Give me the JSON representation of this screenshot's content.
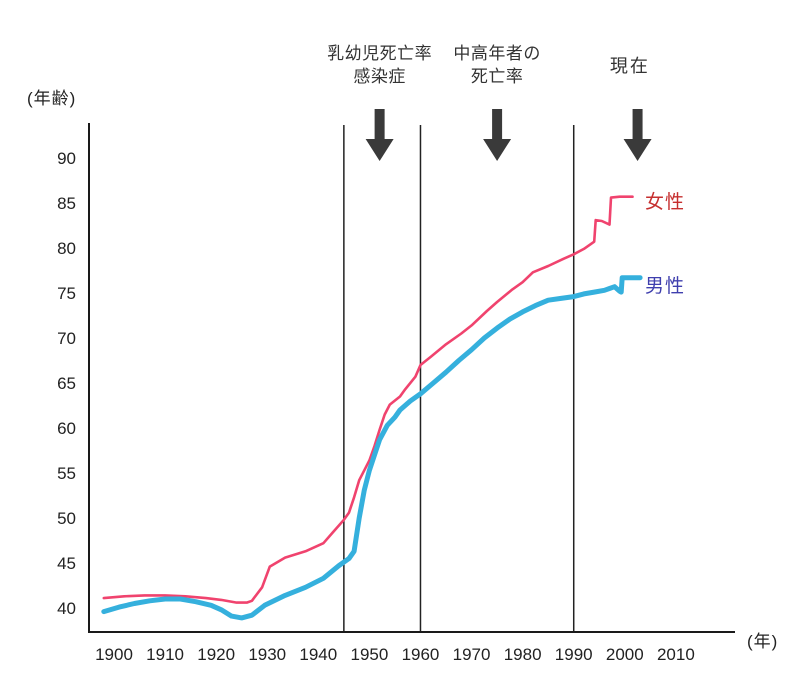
{
  "chart_data": {
    "type": "line",
    "title": "",
    "xlabel": "(年)",
    "ylabel": "(年齢)",
    "x_ticks": [
      1900,
      1910,
      1920,
      1930,
      1940,
      1950,
      1960,
      1970,
      1980,
      1990,
      2000,
      2010
    ],
    "y_ticks": [
      40,
      45,
      50,
      55,
      60,
      65,
      70,
      75,
      80,
      85,
      90
    ],
    "xlim": [
      1898,
      2022
    ],
    "ylim": [
      37.3,
      94
    ],
    "grid": false,
    "event_line_years": [
      1945,
      1960,
      1990
    ],
    "arrow_years": [
      1952,
      1975,
      2002.5
    ],
    "annotations": [
      {
        "lines": [
          "乳幼児死亡率",
          "感染症"
        ],
        "year": 1952
      },
      {
        "lines": [
          "中高年者の",
          "死亡率"
        ],
        "year": 1975
      },
      {
        "lines": [
          "現在"
        ],
        "year": 2001
      }
    ],
    "axis_color": "#1a1a1a",
    "event_line_color": "#222222",
    "arrow_color": "#3a3a3a",
    "series": [
      {
        "name": "女性",
        "color": "#f0436e",
        "label_color": "#c62f2f",
        "stroke_width": 2.6,
        "points": [
          [
            1898,
            41.1
          ],
          [
            1902,
            41.3
          ],
          [
            1906,
            41.4
          ],
          [
            1910,
            41.4
          ],
          [
            1914,
            41.3
          ],
          [
            1918,
            41.1
          ],
          [
            1921,
            40.9
          ],
          [
            1924,
            40.6
          ],
          [
            1926,
            40.6
          ],
          [
            1927,
            40.8
          ],
          [
            1929,
            42.3
          ],
          [
            1930.5,
            44.6
          ],
          [
            1933.5,
            45.6
          ],
          [
            1937.5,
            46.3
          ],
          [
            1941,
            47.2
          ],
          [
            1943,
            48.5
          ],
          [
            1945,
            49.8
          ],
          [
            1946,
            50.6
          ],
          [
            1947,
            52.3
          ],
          [
            1948,
            54.2
          ],
          [
            1949,
            55.3
          ],
          [
            1950,
            56.4
          ],
          [
            1951,
            58.0
          ],
          [
            1952,
            59.8
          ],
          [
            1953,
            61.5
          ],
          [
            1954,
            62.6
          ],
          [
            1956,
            63.5
          ],
          [
            1957,
            64.3
          ],
          [
            1959,
            65.7
          ],
          [
            1960,
            67.0
          ],
          [
            1962,
            67.9
          ],
          [
            1965,
            69.3
          ],
          [
            1968,
            70.5
          ],
          [
            1970,
            71.4
          ],
          [
            1973,
            73.0
          ],
          [
            1975,
            74.0
          ],
          [
            1978,
            75.4
          ],
          [
            1980,
            76.2
          ],
          [
            1982,
            77.3
          ],
          [
            1985,
            78.0
          ],
          [
            1988,
            78.8
          ],
          [
            1990,
            79.3
          ],
          [
            1992,
            79.9
          ],
          [
            1994,
            80.7
          ],
          [
            1994.3,
            83.1
          ],
          [
            1995.5,
            83.0
          ],
          [
            1997,
            82.6
          ],
          [
            1997.3,
            85.6
          ],
          [
            1999,
            85.7
          ],
          [
            2001.5,
            85.7
          ]
        ]
      },
      {
        "name": "男性",
        "color": "#35b0dd",
        "label_color": "#3f3fae",
        "stroke_width": 5,
        "points": [
          [
            1898,
            39.6
          ],
          [
            1901,
            40.1
          ],
          [
            1904,
            40.5
          ],
          [
            1907,
            40.8
          ],
          [
            1910,
            41.0
          ],
          [
            1913,
            41.0
          ],
          [
            1916,
            40.7
          ],
          [
            1919,
            40.3
          ],
          [
            1921,
            39.8
          ],
          [
            1923,
            39.1
          ],
          [
            1925,
            38.9
          ],
          [
            1927,
            39.2
          ],
          [
            1929.5,
            40.3
          ],
          [
            1933.5,
            41.4
          ],
          [
            1937.5,
            42.3
          ],
          [
            1941,
            43.3
          ],
          [
            1944,
            44.7
          ],
          [
            1946,
            45.5
          ],
          [
            1947,
            46.3
          ],
          [
            1948,
            50.0
          ],
          [
            1949,
            53.1
          ],
          [
            1950,
            55.3
          ],
          [
            1951,
            57.0
          ],
          [
            1952,
            58.7
          ],
          [
            1953.5,
            60.3
          ],
          [
            1955,
            61.2
          ],
          [
            1956,
            62.0
          ],
          [
            1958,
            63.0
          ],
          [
            1960,
            63.8
          ],
          [
            1962.5,
            65.0
          ],
          [
            1965,
            66.2
          ],
          [
            1967.5,
            67.5
          ],
          [
            1970,
            68.7
          ],
          [
            1972.5,
            70.0
          ],
          [
            1975,
            71.1
          ],
          [
            1977.5,
            72.1
          ],
          [
            1980,
            72.9
          ],
          [
            1982.5,
            73.6
          ],
          [
            1985,
            74.2
          ],
          [
            1987.5,
            74.4
          ],
          [
            1990,
            74.6
          ],
          [
            1992,
            74.9
          ],
          [
            1994,
            75.1
          ],
          [
            1996,
            75.3
          ],
          [
            1997,
            75.5
          ],
          [
            1998,
            75.7
          ],
          [
            1999,
            75.2
          ],
          [
            1999.3,
            75.1
          ],
          [
            1999.5,
            76.7
          ],
          [
            2003,
            76.7
          ]
        ]
      }
    ],
    "legend_position": "right-of-line-ends"
  }
}
